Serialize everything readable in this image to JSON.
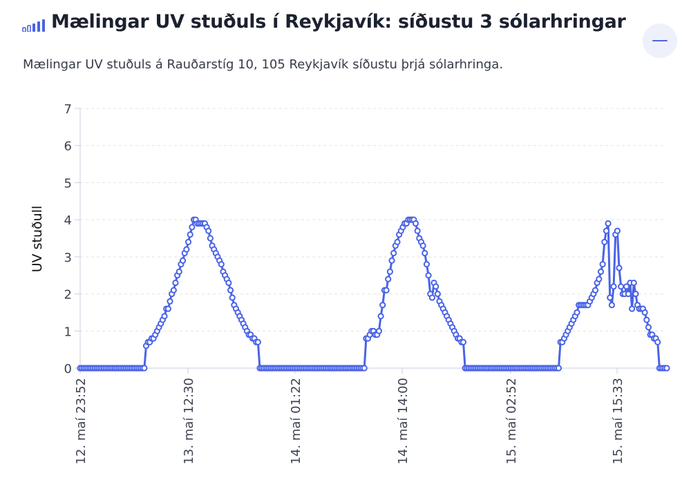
{
  "header": {
    "title": "Mælingar UV stuðuls í Reykjavík: síðustu 3 sólarhringar",
    "title_icon": "bar-chart-icon",
    "collapse_icon": "minus-icon"
  },
  "description": "Mælingar UV stuðuls á Rauðarstíg 10, 105 Reykjavík síðustu þrjá sólarhringa.",
  "colors": {
    "line": "#4a63e7",
    "grid": "#e3e3e3",
    "axis": "#c9cfdc"
  },
  "chart_data": {
    "type": "line",
    "title": "",
    "ylabel": "UV stuðull",
    "xlabel": "",
    "ylim": [
      0,
      7
    ],
    "yticks": [
      0,
      1,
      2,
      3,
      4,
      5,
      6,
      7
    ],
    "grid": true,
    "legend": "none",
    "xtick_labels": [
      "12. maí 23:52",
      "13. maí 12:30",
      "14. maí 01:22",
      "14. maí 14:00",
      "15. maí 02:52",
      "15. maí 15:33"
    ],
    "sampling": "one reading every 10 minutes, starting at 12. maí 23:52",
    "series": [
      {
        "values": [
          0,
          0,
          0,
          0,
          0,
          0,
          0,
          0,
          0,
          0,
          0,
          0,
          0,
          0,
          0,
          0,
          0,
          0,
          0,
          0,
          0,
          0,
          0,
          0,
          0,
          0,
          0,
          0,
          0,
          0,
          0,
          0,
          0,
          0,
          0,
          0,
          0.6,
          0.7,
          0.7,
          0.8,
          0.8,
          0.9,
          1.0,
          1.1,
          1.2,
          1.3,
          1.4,
          1.6,
          1.6,
          1.8,
          2.0,
          2.1,
          2.3,
          2.5,
          2.6,
          2.8,
          2.9,
          3.1,
          3.2,
          3.4,
          3.6,
          3.8,
          4.0,
          4.0,
          3.9,
          3.9,
          3.9,
          3.9,
          3.9,
          3.8,
          3.7,
          3.5,
          3.3,
          3.2,
          3.1,
          3.0,
          2.9,
          2.8,
          2.6,
          2.5,
          2.4,
          2.3,
          2.1,
          1.9,
          1.7,
          1.6,
          1.5,
          1.4,
          1.3,
          1.2,
          1.1,
          1.0,
          0.9,
          0.9,
          0.8,
          0.8,
          0.7,
          0.7,
          0,
          0,
          0,
          0,
          0,
          0,
          0,
          0,
          0,
          0,
          0,
          0,
          0,
          0,
          0,
          0,
          0,
          0,
          0,
          0,
          0,
          0,
          0,
          0,
          0,
          0,
          0,
          0,
          0,
          0,
          0,
          0,
          0,
          0,
          0,
          0,
          0,
          0,
          0,
          0,
          0,
          0,
          0,
          0,
          0,
          0,
          0,
          0,
          0,
          0,
          0,
          0,
          0,
          0,
          0,
          0,
          0,
          0,
          0.8,
          0.8,
          0.9,
          1.0,
          1.0,
          0.9,
          0.9,
          1.0,
          1.4,
          1.7,
          2.1,
          2.1,
          2.4,
          2.6,
          2.9,
          3.1,
          3.3,
          3.4,
          3.6,
          3.7,
          3.8,
          3.9,
          3.9,
          4.0,
          4.0,
          4.0,
          4.0,
          3.9,
          3.7,
          3.5,
          3.4,
          3.3,
          3.1,
          2.8,
          2.5,
          2.0,
          1.9,
          2.3,
          2.2,
          2.0,
          1.8,
          1.7,
          1.6,
          1.5,
          1.4,
          1.3,
          1.2,
          1.1,
          1.0,
          0.9,
          0.8,
          0.8,
          0.7,
          0.7,
          0,
          0,
          0,
          0,
          0,
          0,
          0,
          0,
          0,
          0,
          0,
          0,
          0,
          0,
          0,
          0,
          0,
          0,
          0,
          0,
          0,
          0,
          0,
          0,
          0,
          0,
          0,
          0,
          0,
          0,
          0,
          0,
          0,
          0,
          0,
          0,
          0,
          0,
          0,
          0,
          0,
          0,
          0,
          0,
          0,
          0,
          0,
          0,
          0,
          0,
          0,
          0,
          0.7,
          0.7,
          0.8,
          0.9,
          1.0,
          1.1,
          1.2,
          1.3,
          1.4,
          1.5,
          1.7,
          1.7,
          1.7,
          1.7,
          1.7,
          1.7,
          1.8,
          1.9,
          2.0,
          2.1,
          2.3,
          2.4,
          2.6,
          2.8,
          3.4,
          3.7,
          3.9,
          1.9,
          1.7,
          2.2,
          3.6,
          3.7,
          2.7,
          2.2,
          2.0,
          2.0,
          2.2,
          2.0,
          2.3,
          1.6,
          2.3,
          2.0,
          1.7,
          1.6,
          1.6,
          1.6,
          1.5,
          1.3,
          1.1,
          0.9,
          0.9,
          0.8,
          0.8,
          0.7,
          0,
          0,
          0,
          0,
          0
        ]
      }
    ]
  }
}
